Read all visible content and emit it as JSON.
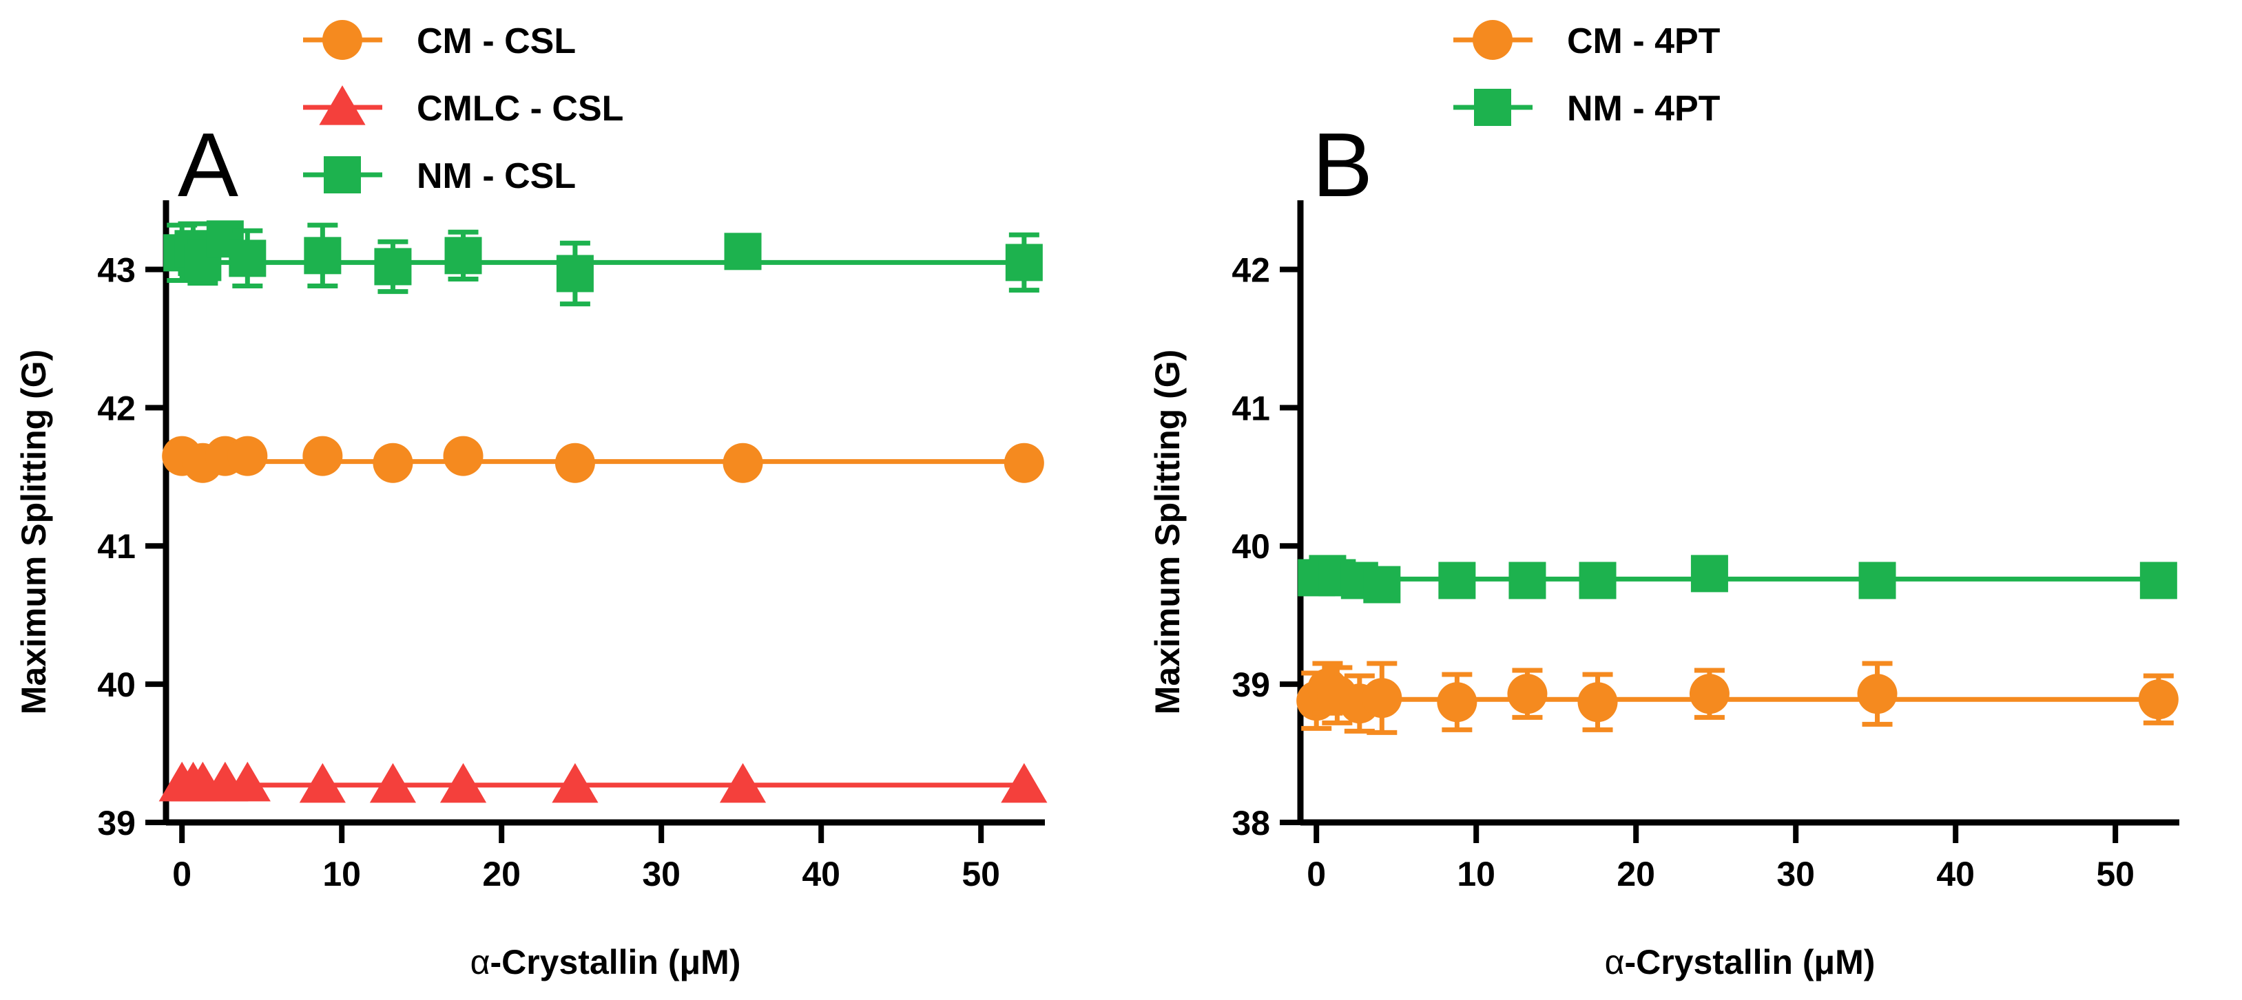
{
  "chart_data": [
    {
      "type": "line",
      "panel_label": "A",
      "xlabel_prefix": "α",
      "xlabel": "-Crystallin (μM)",
      "ylabel": "Maximum Splitting (G)",
      "xlim": [
        -1,
        54
      ],
      "ylim": [
        39,
        43.5
      ],
      "xticks": [
        0,
        10,
        20,
        30,
        40,
        50
      ],
      "yticks": [
        39,
        40,
        41,
        42,
        43
      ],
      "series": [
        {
          "name": "CM - CSL",
          "color": "#F58A1F",
          "marker": "circle",
          "x": [
            0,
            1.3,
            2.7,
            4.1,
            8.8,
            13.2,
            17.6,
            24.6,
            35.1,
            52.7
          ],
          "y": [
            41.65,
            41.6,
            41.65,
            41.65,
            41.65,
            41.6,
            41.65,
            41.6,
            41.6,
            41.6
          ],
          "err": [
            0,
            0,
            0,
            0,
            0,
            0,
            0,
            0,
            0,
            0
          ],
          "fit": 41.61
        },
        {
          "name": "CMLC - CSL",
          "color": "#F4403C",
          "marker": "triangle",
          "x": [
            0,
            0.7,
            1.3,
            2.7,
            4.1,
            8.8,
            13.2,
            17.6,
            24.6,
            35.1,
            52.7
          ],
          "y": [
            39.28,
            39.28,
            39.28,
            39.28,
            39.28,
            39.27,
            39.27,
            39.27,
            39.27,
            39.27,
            39.27
          ],
          "err": [
            0,
            0,
            0,
            0,
            0,
            0,
            0,
            0,
            0,
            0,
            0
          ],
          "fit": 39.27
        },
        {
          "name": "NM - CSL",
          "color": "#1DB24E",
          "marker": "square",
          "x": [
            0,
            0.7,
            1.3,
            2.7,
            4.1,
            8.8,
            13.2,
            17.6,
            24.6,
            35.1,
            52.7
          ],
          "y": [
            43.12,
            43.15,
            43.05,
            43.22,
            43.08,
            43.1,
            43.02,
            43.1,
            42.97,
            43.13,
            43.05
          ],
          "err": [
            0.2,
            0.18,
            0.15,
            0.07,
            0.2,
            0.22,
            0.18,
            0.17,
            0.22,
            0.05,
            0.2
          ],
          "fit": 43.05
        }
      ]
    },
    {
      "type": "line",
      "panel_label": "B",
      "xlabel_prefix": "α",
      "xlabel": "-Crystallin (μM)",
      "ylabel": "Maximum Splitting (G)",
      "xlim": [
        -1,
        54
      ],
      "ylim": [
        38,
        42.5
      ],
      "xticks": [
        0,
        10,
        20,
        30,
        40,
        50
      ],
      "yticks": [
        38,
        39,
        40,
        41,
        42
      ],
      "series": [
        {
          "name": "CM - 4PT",
          "color": "#F58A1F",
          "marker": "circle",
          "x": [
            0,
            0.7,
            1.3,
            2.7,
            4.1,
            8.8,
            13.2,
            17.6,
            24.6,
            35.1,
            52.7
          ],
          "y": [
            38.88,
            38.97,
            38.92,
            38.86,
            38.9,
            38.87,
            38.93,
            38.87,
            38.93,
            38.93,
            38.89
          ],
          "err": [
            0.2,
            0.18,
            0.2,
            0.2,
            0.25,
            0.2,
            0.17,
            0.2,
            0.17,
            0.22,
            0.17
          ],
          "fit": 38.89
        },
        {
          "name": "NM - 4PT",
          "color": "#1DB24E",
          "marker": "square",
          "x": [
            0,
            0.7,
            1.3,
            2.7,
            4.1,
            8.8,
            13.2,
            17.6,
            24.6,
            35.1,
            52.7
          ],
          "y": [
            39.77,
            39.8,
            39.77,
            39.75,
            39.72,
            39.75,
            39.75,
            39.75,
            39.8,
            39.75,
            39.75
          ],
          "err": [
            0.1,
            0.05,
            0.05,
            0.03,
            0.03,
            0.03,
            0.03,
            0.03,
            0.03,
            0.03,
            0.03
          ],
          "fit": 39.76
        }
      ]
    }
  ]
}
